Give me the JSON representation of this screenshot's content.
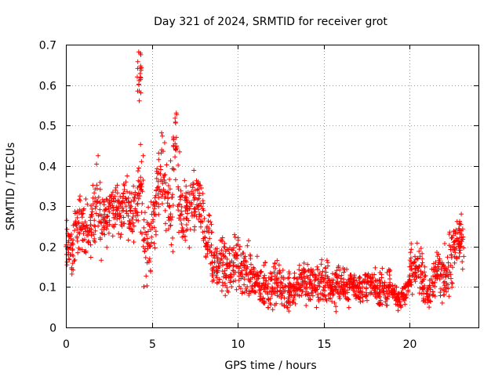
{
  "chart_data": {
    "type": "scatter",
    "title": "Day 321 of 2024, SRMTID for receiver grot",
    "xlabel": "GPS time / hours",
    "ylabel": "SRMTID / TECUs",
    "xlim": [
      0,
      24
    ],
    "ylim": [
      0,
      0.7
    ],
    "x_ticks": [
      0,
      5,
      10,
      15,
      20
    ],
    "x_tick_labels": [
      "0",
      "5",
      "10",
      "15",
      "20"
    ],
    "y_ticks": [
      0,
      0.1,
      0.2,
      0.3,
      0.4,
      0.5,
      0.6,
      0.7
    ],
    "y_tick_labels": [
      "0",
      "0.1",
      "0.2",
      "0.3",
      "0.4",
      "0.5",
      "0.6",
      "0.7"
    ],
    "grid": true,
    "marker": "+",
    "series": [
      {
        "name": "SRMTID",
        "color": "#ff0000",
        "x": [
          0.0,
          0.25,
          0.5,
          0.75,
          1.0,
          1.25,
          1.5,
          1.75,
          2.0,
          2.25,
          2.5,
          2.75,
          3.0,
          3.25,
          3.5,
          3.75,
          4.0,
          4.15,
          4.25,
          4.5,
          4.75,
          5.0,
          5.25,
          5.5,
          5.75,
          6.0,
          6.25,
          6.5,
          6.75,
          7.0,
          7.25,
          7.5,
          7.75,
          8.0,
          8.25,
          8.5,
          8.75,
          9.0,
          9.25,
          9.5,
          9.75,
          10.0,
          10.25,
          10.5,
          10.75,
          11.0,
          11.25,
          11.5,
          11.75,
          12.0,
          12.25,
          12.5,
          12.75,
          13.0,
          13.25,
          13.5,
          13.75,
          14.0,
          14.25,
          14.5,
          14.75,
          15.0,
          15.25,
          15.5,
          15.75,
          16.0,
          16.25,
          16.5,
          16.75,
          17.0,
          17.25,
          17.5,
          17.75,
          18.0,
          18.25,
          18.5,
          18.75,
          19.0,
          19.25,
          19.5,
          19.75,
          20.0,
          20.25,
          20.5,
          20.75,
          21.0,
          21.25,
          21.5,
          21.75,
          22.0,
          22.25,
          22.5,
          22.75,
          22.9
        ],
        "y": [
          0.2,
          0.18,
          0.24,
          0.26,
          0.25,
          0.24,
          0.28,
          0.3,
          0.26,
          0.28,
          0.3,
          0.29,
          0.28,
          0.31,
          0.3,
          0.29,
          0.32,
          0.62,
          0.35,
          0.2,
          0.22,
          0.28,
          0.34,
          0.38,
          0.32,
          0.3,
          0.45,
          0.3,
          0.28,
          0.27,
          0.3,
          0.32,
          0.28,
          0.22,
          0.2,
          0.16,
          0.15,
          0.16,
          0.14,
          0.15,
          0.16,
          0.15,
          0.14,
          0.13,
          0.12,
          0.11,
          0.1,
          0.11,
          0.1,
          0.1,
          0.11,
          0.1,
          0.09,
          0.1,
          0.1,
          0.12,
          0.11,
          0.1,
          0.11,
          0.1,
          0.11,
          0.12,
          0.1,
          0.1,
          0.11,
          0.1,
          0.1,
          0.11,
          0.1,
          0.1,
          0.1,
          0.11,
          0.1,
          0.09,
          0.1,
          0.09,
          0.1,
          0.08,
          0.07,
          0.08,
          0.1,
          0.15,
          0.16,
          0.14,
          0.1,
          0.09,
          0.12,
          0.15,
          0.12,
          0.14,
          0.16,
          0.2,
          0.22,
          0.2
        ],
        "spread": [
          0.05,
          0.05,
          0.05,
          0.05,
          0.05,
          0.05,
          0.06,
          0.08,
          0.06,
          0.05,
          0.05,
          0.05,
          0.05,
          0.05,
          0.05,
          0.05,
          0.06,
          0.05,
          0.08,
          0.07,
          0.06,
          0.06,
          0.06,
          0.07,
          0.09,
          0.08,
          0.06,
          0.08,
          0.07,
          0.06,
          0.06,
          0.05,
          0.05,
          0.06,
          0.06,
          0.05,
          0.05,
          0.06,
          0.05,
          0.05,
          0.05,
          0.06,
          0.05,
          0.05,
          0.05,
          0.04,
          0.04,
          0.05,
          0.04,
          0.04,
          0.04,
          0.04,
          0.04,
          0.04,
          0.04,
          0.04,
          0.04,
          0.04,
          0.04,
          0.04,
          0.04,
          0.05,
          0.04,
          0.04,
          0.04,
          0.03,
          0.03,
          0.03,
          0.03,
          0.03,
          0.03,
          0.03,
          0.03,
          0.03,
          0.03,
          0.03,
          0.03,
          0.02,
          0.02,
          0.02,
          0.03,
          0.04,
          0.04,
          0.04,
          0.04,
          0.03,
          0.04,
          0.04,
          0.04,
          0.05,
          0.06,
          0.06,
          0.05,
          0.04
        ]
      }
    ]
  }
}
